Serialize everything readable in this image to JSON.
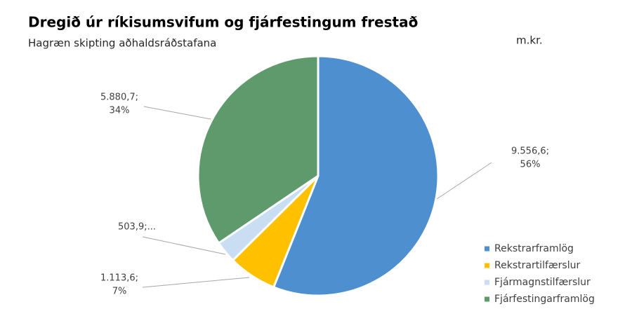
{
  "chart_data": {
    "type": "pie",
    "title": "Dregið úr ríkisumsvifum og fjárfestingum frestað",
    "subtitle": "Hagræn skipting aðhaldsráðstafana",
    "unit": "m.kr.",
    "categories": [
      "Rekstrarframlög",
      "Rekstrartilfærslur",
      "Fjármagnstilfærslur",
      "Fjárfestingarframlög"
    ],
    "values": [
      9556.6,
      1113.6,
      503.9,
      5880.7
    ],
    "value_labels": [
      "9.556,6;",
      "1.113,6;",
      "503,9;...",
      "5.880,7;"
    ],
    "percent_labels": [
      "56%",
      "7%",
      null,
      "34%"
    ],
    "colors": [
      "#4e8fcf",
      "#ffc000",
      "#c9ddf3",
      "#5e9a6c"
    ],
    "legend": "right"
  }
}
